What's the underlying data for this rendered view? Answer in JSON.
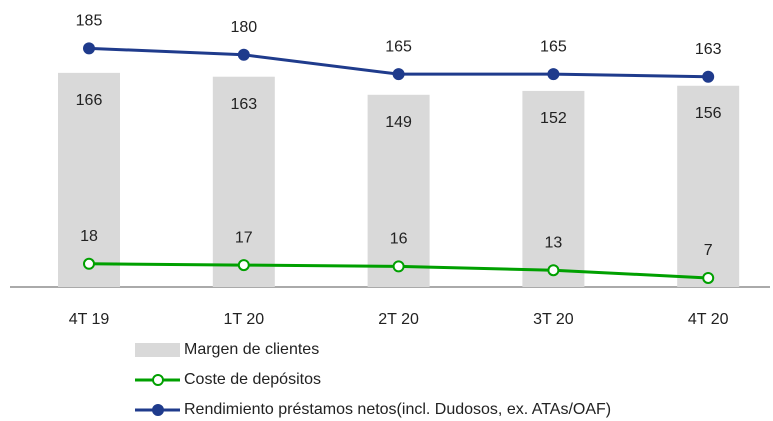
{
  "chart_data": {
    "type": "bar",
    "categories": [
      "4T 19",
      "1T 20",
      "2T 20",
      "3T 20",
      "4T 20"
    ],
    "series": [
      {
        "name": "Margen de clientes",
        "type": "bar",
        "color": "#d9d9d9",
        "values": [
          166,
          163,
          149,
          152,
          156
        ]
      },
      {
        "name": "Coste de depósitos",
        "type": "line",
        "color": "#00a000",
        "values": [
          18,
          17,
          16,
          13,
          7
        ]
      },
      {
        "name": "Rendimiento préstamos netos(incl. Dudosos, ex. ATAs/OAF)",
        "type": "line",
        "color": "#1f3b8c",
        "values": [
          185,
          180,
          165,
          165,
          163
        ]
      }
    ]
  }
}
